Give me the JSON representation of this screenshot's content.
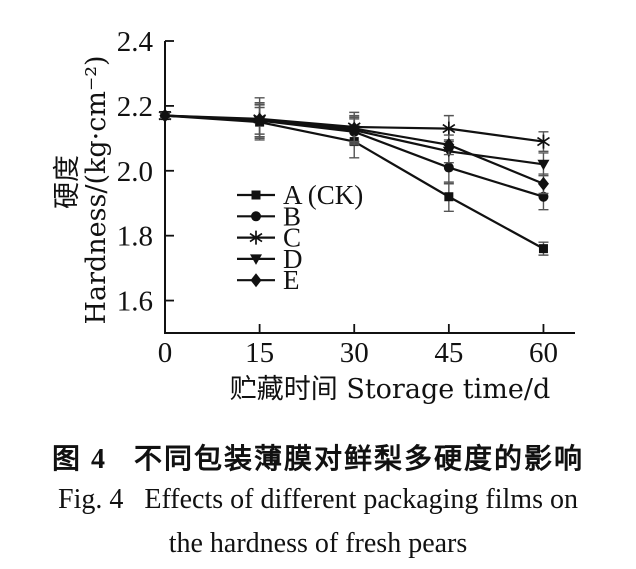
{
  "figure": {
    "caption_zh": "图 4   不同包装薄膜对鲜梨多硬度的影响",
    "caption_en_line1": "Fig. 4   Effects of different packaging films on",
    "caption_en_line2": "the hardness of fresh pears"
  },
  "chart_data": {
    "type": "line",
    "title": "",
    "xlabel": "贮藏时间 Storage time/d",
    "ylabel": "硬度 Hardness/(kg·cm⁻²)",
    "ylabel_cjk": "硬度",
    "ylabel_en": "Hardness/(kg·cm⁻²)",
    "x": [
      0,
      15,
      30,
      45,
      60
    ],
    "xticks": [
      0,
      15,
      30,
      45,
      60
    ],
    "yticks": [
      1.6,
      1.8,
      2.0,
      2.2,
      2.4
    ],
    "xlim": [
      0,
      65
    ],
    "ylim": [
      1.5,
      2.4
    ],
    "grid": false,
    "legend_position": "inside-left-middle",
    "error_bars": true,
    "series": [
      {
        "name": "A (CK)",
        "marker": "square",
        "values": [
          2.17,
          2.15,
          2.09,
          1.92,
          1.76
        ],
        "errors": [
          0.008,
          0.045,
          0.05,
          0.045,
          0.02
        ]
      },
      {
        "name": "B",
        "marker": "circle",
        "values": [
          2.17,
          2.155,
          2.12,
          2.01,
          1.92
        ],
        "errors": [
          0.008,
          0.055,
          0.04,
          0.05,
          0.04
        ]
      },
      {
        "name": "C",
        "marker": "asterisk",
        "values": [
          2.17,
          2.16,
          2.135,
          2.13,
          2.09
        ],
        "errors": [
          0.008,
          0.065,
          0.045,
          0.04,
          0.03
        ]
      },
      {
        "name": "D",
        "marker": "triangle-down",
        "values": [
          2.17,
          2.155,
          2.125,
          2.06,
          2.02
        ],
        "errors": [
          0.008,
          0.05,
          0.04,
          0.035,
          0.035
        ]
      },
      {
        "name": "E",
        "marker": "diamond",
        "values": [
          2.17,
          2.158,
          2.13,
          2.08,
          1.96
        ],
        "errors": [
          0.008,
          0.045,
          0.04,
          0.03,
          0.03
        ]
      }
    ],
    "colors": {
      "line": "#111111",
      "error_bar": "#555555",
      "background": "#ffffff"
    }
  }
}
